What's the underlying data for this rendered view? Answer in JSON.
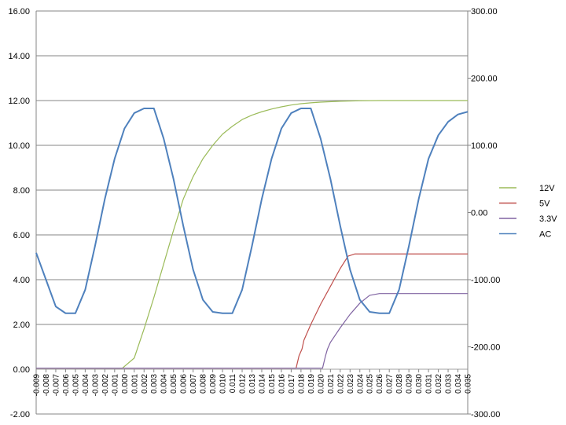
{
  "chart_data": {
    "type": "line",
    "title": "",
    "grid": true,
    "legend_position": "right",
    "x": {
      "min": -0.009,
      "max": 0.035,
      "step": 0.001,
      "tick_labels": [
        "-0.009",
        "-0.008",
        "-0.007",
        "-0.006",
        "-0.005",
        "-0.004",
        "-0.003",
        "-0.002",
        "-0.001",
        "0.000",
        "0.001",
        "0.002",
        "0.003",
        "0.004",
        "0.005",
        "0.006",
        "0.007",
        "0.008",
        "0.009",
        "0.010",
        "0.011",
        "0.012",
        "0.013",
        "0.014",
        "0.015",
        "0.016",
        "0.017",
        "0.018",
        "0.019",
        "0.020",
        "0.021",
        "0.022",
        "0.023",
        "0.024",
        "0.025",
        "0.026",
        "0.027",
        "0.028",
        "0.029",
        "0.030",
        "0.031",
        "0.032",
        "0.033",
        "0.034",
        "0.035"
      ]
    },
    "y_left": {
      "min": -2,
      "max": 16,
      "step": 2,
      "tick_labels": [
        "-2.00",
        "0.00",
        "2.00",
        "4.00",
        "6.00",
        "8.00",
        "10.00",
        "12.00",
        "14.00",
        "16.00"
      ]
    },
    "y_right": {
      "min": -300,
      "max": 300,
      "step": 100,
      "tick_labels": [
        "-300.00",
        "-200.00",
        "-100.00",
        "0.00",
        "100.00",
        "200.00",
        "300.00"
      ]
    },
    "series": [
      {
        "name": "12V",
        "axis": "left",
        "color": "#9bbb59",
        "points": [
          [
            -0.009,
            0.05
          ],
          [
            -0.0002,
            0.05
          ],
          [
            0.001,
            0.5
          ],
          [
            0.002,
            1.8
          ],
          [
            0.003,
            3.2
          ],
          [
            0.004,
            4.7
          ],
          [
            0.005,
            6.2
          ],
          [
            0.006,
            7.6
          ],
          [
            0.007,
            8.6
          ],
          [
            0.008,
            9.4
          ],
          [
            0.009,
            10.0
          ],
          [
            0.01,
            10.5
          ],
          [
            0.011,
            10.85
          ],
          [
            0.012,
            11.15
          ],
          [
            0.013,
            11.35
          ],
          [
            0.014,
            11.5
          ],
          [
            0.015,
            11.62
          ],
          [
            0.016,
            11.72
          ],
          [
            0.017,
            11.8
          ],
          [
            0.018,
            11.86
          ],
          [
            0.019,
            11.9
          ],
          [
            0.02,
            11.93
          ],
          [
            0.022,
            11.97
          ],
          [
            0.024,
            11.99
          ],
          [
            0.026,
            12.0
          ],
          [
            0.035,
            12.0
          ]
        ]
      },
      {
        "name": "5V",
        "axis": "left",
        "color": "#c0504d",
        "points": [
          [
            -0.009,
            0.05
          ],
          [
            0.0175,
            0.05
          ],
          [
            0.0178,
            0.6
          ],
          [
            0.0181,
            0.9
          ],
          [
            0.0183,
            1.3
          ],
          [
            0.019,
            2.0
          ],
          [
            0.02,
            2.9
          ],
          [
            0.021,
            3.7
          ],
          [
            0.022,
            4.5
          ],
          [
            0.0228,
            5.05
          ],
          [
            0.0235,
            5.15
          ],
          [
            0.035,
            5.15
          ]
        ]
      },
      {
        "name": "3.3V",
        "axis": "left",
        "color": "#8064a2",
        "points": [
          [
            -0.009,
            0.05
          ],
          [
            0.0202,
            0.05
          ],
          [
            0.0205,
            0.6
          ],
          [
            0.0207,
            0.9
          ],
          [
            0.021,
            1.2
          ],
          [
            0.022,
            1.85
          ],
          [
            0.023,
            2.45
          ],
          [
            0.024,
            2.95
          ],
          [
            0.025,
            3.3
          ],
          [
            0.026,
            3.38
          ],
          [
            0.035,
            3.38
          ]
        ]
      },
      {
        "name": "AC",
        "axis": "right",
        "color": "#4f81bd",
        "points": [
          [
            -0.009,
            -60
          ],
          [
            -0.008,
            -100
          ],
          [
            -0.007,
            -140
          ],
          [
            -0.006,
            -150
          ],
          [
            -0.005,
            -150
          ],
          [
            -0.004,
            -115
          ],
          [
            -0.003,
            -50
          ],
          [
            -0.002,
            20
          ],
          [
            -0.001,
            80
          ],
          [
            0.0,
            125
          ],
          [
            0.001,
            148
          ],
          [
            0.002,
            155
          ],
          [
            0.003,
            155
          ],
          [
            0.004,
            110
          ],
          [
            0.005,
            50
          ],
          [
            0.006,
            -20
          ],
          [
            0.007,
            -85
          ],
          [
            0.008,
            -130
          ],
          [
            0.009,
            -148
          ],
          [
            0.01,
            -150
          ],
          [
            0.011,
            -150
          ],
          [
            0.012,
            -115
          ],
          [
            0.013,
            -50
          ],
          [
            0.014,
            20
          ],
          [
            0.015,
            80
          ],
          [
            0.016,
            125
          ],
          [
            0.017,
            148
          ],
          [
            0.018,
            155
          ],
          [
            0.019,
            155
          ],
          [
            0.02,
            110
          ],
          [
            0.021,
            50
          ],
          [
            0.022,
            -20
          ],
          [
            0.023,
            -85
          ],
          [
            0.024,
            -130
          ],
          [
            0.025,
            -148
          ],
          [
            0.026,
            -150
          ],
          [
            0.027,
            -150
          ],
          [
            0.028,
            -115
          ],
          [
            0.029,
            -50
          ],
          [
            0.03,
            20
          ],
          [
            0.031,
            80
          ],
          [
            0.032,
            115
          ],
          [
            0.033,
            135
          ],
          [
            0.034,
            146
          ],
          [
            0.035,
            150
          ]
        ]
      }
    ]
  }
}
